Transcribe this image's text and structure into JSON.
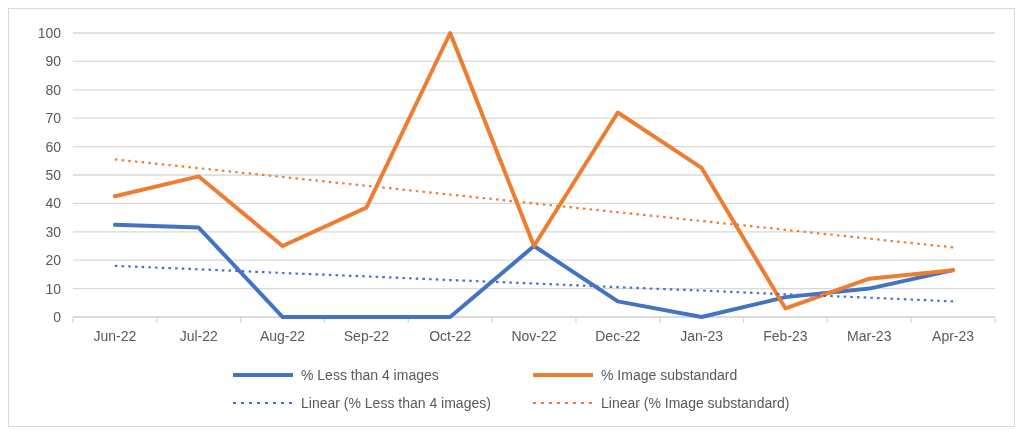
{
  "chart_data": {
    "type": "line",
    "categories": [
      "Jun-22",
      "Jul-22",
      "Aug-22",
      "Sep-22",
      "Oct-22",
      "Nov-22",
      "Dec-22",
      "Jan-23",
      "Feb-23",
      "Mar-23",
      "Apr-23"
    ],
    "series": [
      {
        "name": "% Less than 4 images",
        "color": "#4472c4",
        "line_style": "solid",
        "values": [
          32.5,
          31.5,
          0,
          0,
          0,
          25,
          5.5,
          0,
          7,
          10,
          16.5
        ]
      },
      {
        "name": "% Image substandard",
        "color": "#ed7d31",
        "line_style": "solid",
        "values": [
          42.5,
          49.5,
          25,
          38.5,
          100,
          25,
          72,
          52.5,
          3,
          13.5,
          16.5
        ]
      },
      {
        "name": "Linear (% Less than 4 images)",
        "color": "#4472c4",
        "line_style": "dotted",
        "values": [
          18,
          16.8,
          15.5,
          14.3,
          13,
          11.8,
          10.5,
          9.3,
          8,
          6.8,
          5.5
        ]
      },
      {
        "name": "Linear (% Image substandard)",
        "color": "#ed7d31",
        "line_style": "dotted",
        "values": [
          55.5,
          52.4,
          49.3,
          46.2,
          43.1,
          40,
          36.9,
          33.8,
          30.7,
          27.6,
          24.5
        ]
      }
    ],
    "ylim": [
      0,
      100
    ],
    "yticks": [
      0,
      10,
      20,
      30,
      40,
      50,
      60,
      70,
      80,
      90,
      100
    ],
    "grid": "y",
    "legend": "bottom",
    "marker": "none"
  }
}
